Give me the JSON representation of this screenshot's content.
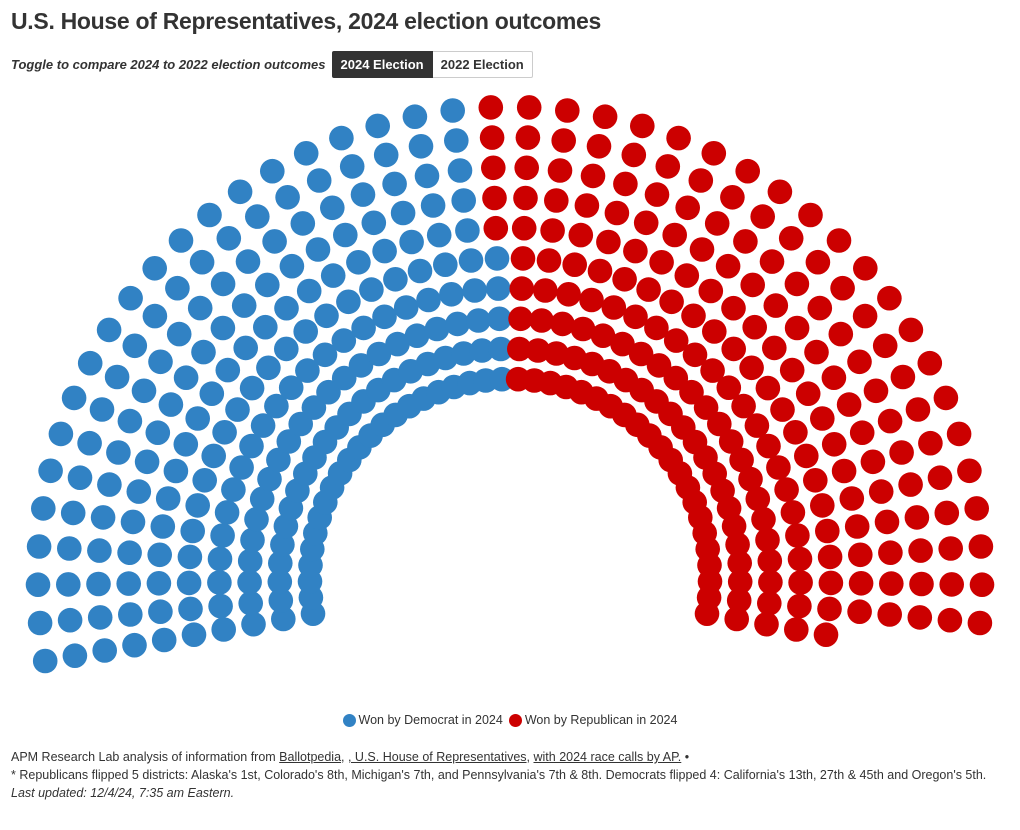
{
  "header": {
    "title": "U.S. House of Representatives, 2024 election outcomes",
    "toggle_label": "Toggle to compare 2024 to 2022 election outcomes",
    "toggle_options": [
      {
        "label": "2024 Election",
        "active": true
      },
      {
        "label": "2022 Election",
        "active": false
      }
    ]
  },
  "chart_data": {
    "type": "parliament",
    "title": "U.S. House of Representatives, 2024 election outcomes",
    "total_seats": 435,
    "rows": 10,
    "series": [
      {
        "name": "Won by Democrat in 2024",
        "value": 215,
        "color": "#3182c4"
      },
      {
        "name": "Won by Republican in 2024",
        "value": 220,
        "color": "#cc0000"
      }
    ],
    "legend_position": "bottom-center"
  },
  "legend": [
    {
      "label": "Won by Democrat in 2024",
      "color": "#3182c4"
    },
    {
      "label": "Won by Republican in 2024",
      "color": "#cc0000"
    }
  ],
  "footer": {
    "source_prefix": "APM Research Lab analysis of information from ",
    "link1": "Ballotpedia",
    "sep": ", ",
    "link2": ", U.S. House of Representatives",
    "sep2": ", ",
    "link3": "with 2024 race calls by AP.",
    "bullet": " •",
    "note": "* Republicans flipped 5 districts: Alaska's 1st, Colorado's 8th, Michigan's 7th, and Pennsylvania's 7th & 8th. Democrats flipped 4: California's 13th, 27th & 45th and Oregon's 5th.",
    "updated": "Last updated: 12/4/24, 7:35 am Eastern."
  }
}
